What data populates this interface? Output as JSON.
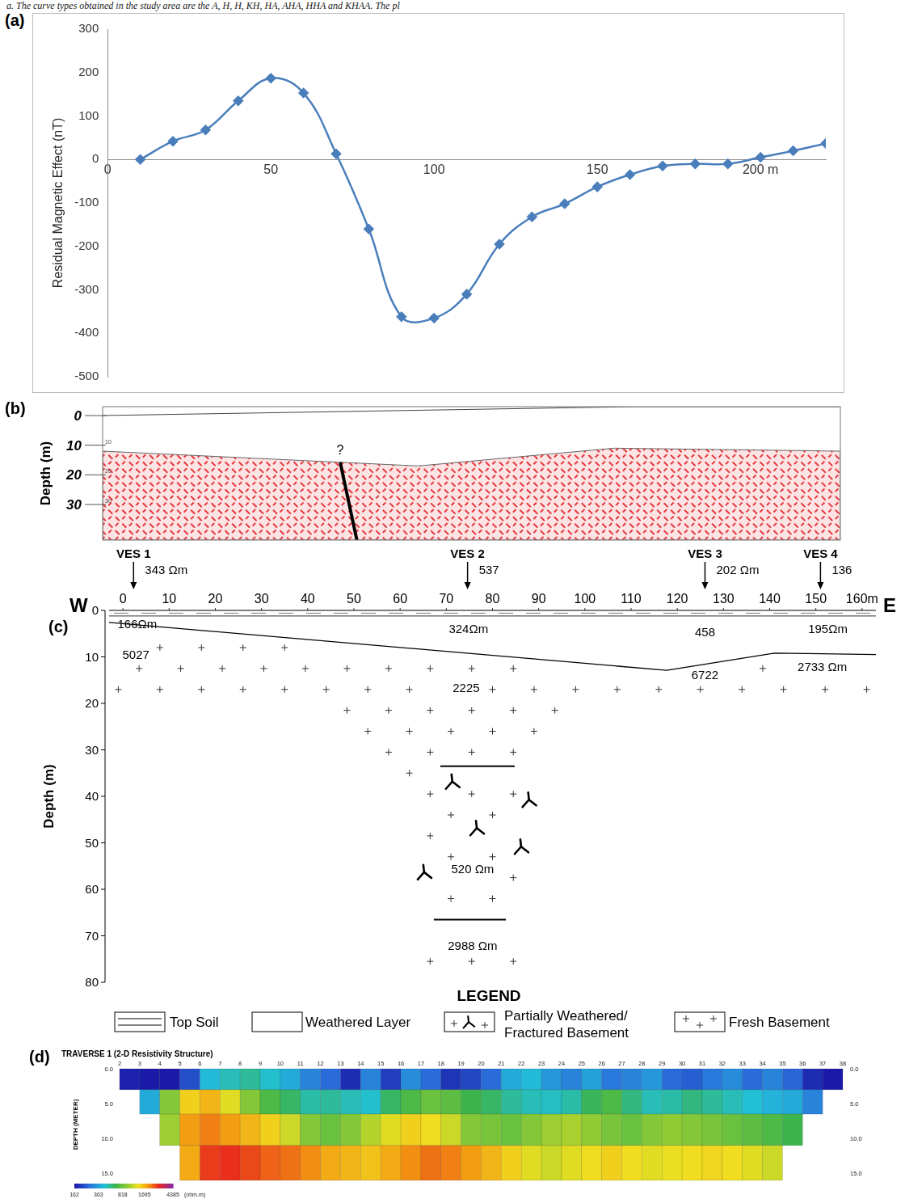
{
  "caption": "a. The curve types obtained in the study area are the A, H, H, KH, HA, AHA, HHA and KHAA. The pl",
  "chart_data": {
    "panel": "(a)",
    "type": "line",
    "y_label": "Residual Magnetic Effect (nT)",
    "x": [
      10,
      20,
      30,
      40,
      50,
      60,
      70,
      80,
      90,
      100,
      110,
      120,
      130,
      140,
      150,
      160,
      170,
      180,
      190,
      200,
      210,
      220
    ],
    "values": [
      0,
      42,
      68,
      135,
      187,
      153,
      13,
      -160,
      -362,
      -365,
      -310,
      -195,
      -132,
      -102,
      -63,
      -35,
      -15,
      -10,
      -10,
      5,
      20,
      37
    ],
    "color": "#4a7ebb",
    "marker": "diamond",
    "line_style": "solid",
    "xlim": [
      0,
      220
    ],
    "xticks": [
      0,
      50,
      100,
      150,
      {
        "value": 200,
        "label": "200 m"
      }
    ],
    "ylim": [
      -500,
      300
    ],
    "yticks": [
      -500,
      -400,
      -300,
      -200,
      -100,
      0,
      100,
      200,
      300
    ],
    "grid": false
  },
  "section_b": {
    "panel": "(b)",
    "y_label": "Depth (m)",
    "depth_ticks": [
      0,
      10,
      20,
      30
    ],
    "distance_range": [
      0,
      222
    ],
    "depth_range": [
      -3,
      42
    ],
    "surface": [
      {
        "x": 0,
        "depth": 0
      },
      {
        "x": 160,
        "depth": -3
      },
      {
        "x": 222,
        "depth": -3
      }
    ],
    "basement_top": [
      {
        "x": 0,
        "depth": 12
      },
      {
        "x": 95,
        "depth": 17
      },
      {
        "x": 154,
        "depth": 11
      },
      {
        "x": 222,
        "depth": 12
      }
    ],
    "fault": {
      "label": "?",
      "top": {
        "x": 71.5,
        "depth": 15.8
      },
      "bottom": {
        "x": 76.5,
        "depth": 42
      }
    }
  },
  "section_c": {
    "panel": "(c)",
    "west": "W",
    "east": "E",
    "y_label": "Depth (m)",
    "distance_range": [
      -3,
      163
    ],
    "distance_ticks": [
      0,
      10,
      20,
      30,
      40,
      50,
      60,
      70,
      80,
      90,
      100,
      110,
      120,
      130,
      140,
      150,
      {
        "value": 160,
        "label": "160m"
      }
    ],
    "depth_range": [
      0,
      80
    ],
    "depth_ticks": [
      0,
      10,
      20,
      30,
      40,
      50,
      60,
      70,
      80
    ],
    "ves": [
      {
        "name": "VES 1",
        "x": 2.3,
        "label": "343 Ωm"
      },
      {
        "name": "VES 2",
        "x": 74.6,
        "label": "537"
      },
      {
        "name": "VES 3",
        "x": 126,
        "label": "202 Ωm"
      },
      {
        "name": "VES 4",
        "x": 151,
        "label": "136"
      }
    ],
    "topsoil_base": [
      {
        "x": -3,
        "depth": 1.2
      },
      {
        "x": 163,
        "depth": 1.2
      }
    ],
    "weathered_base": [
      {
        "x": -3,
        "depth": 2.6
      },
      {
        "x": 117.7,
        "depth": 12.9
      },
      {
        "x": 141,
        "depth": 9.2
      },
      {
        "x": 163,
        "depth": 9.5
      }
    ],
    "fractured_zone": {
      "top": 33.5,
      "bottom": 66.5,
      "top_x": [
        68.7,
        84.8
      ],
      "bottom_x": [
        67.3,
        82.9
      ]
    },
    "layers": [
      {
        "label": "166Ωm",
        "x": 3.1,
        "depth": 3.0
      },
      {
        "label": "5027",
        "x": 2.8,
        "depth": 9.6
      },
      {
        "label": "324Ωm",
        "x": 74.8,
        "depth": 4.0
      },
      {
        "label": "2225",
        "x": 74.3,
        "depth": 16.7
      },
      {
        "label": "520 Ωm",
        "x": 75.7,
        "depth": 55.7
      },
      {
        "label": "2988 Ωm",
        "x": 75.7,
        "depth": 72.2
      },
      {
        "label": "458",
        "x": 126,
        "depth": 4.7
      },
      {
        "label": "6722",
        "x": 126,
        "depth": 13.9
      },
      {
        "label": "195Ωm",
        "x": 152.6,
        "depth": 4.0
      },
      {
        "label": "2733 Ωm",
        "x": 151.4,
        "depth": 12.2
      }
    ]
  },
  "legend": {
    "title": "LEGEND",
    "items": [
      "Top Soil",
      "Weathered Layer",
      "Partially Weathered/ Fractured Basement",
      "Fresh Basement"
    ]
  },
  "section_d": {
    "panel": "(d)",
    "title": "TRAVERSE 1 (2-D Resistivity Structure)",
    "y_label": "DEPTH (METER)",
    "electrodes": [
      2,
      3,
      4,
      5,
      6,
      7,
      8,
      9,
      10,
      11,
      12,
      13,
      14,
      15,
      16,
      17,
      18,
      19,
      20,
      21,
      22,
      23,
      24,
      25,
      26,
      27,
      28,
      29,
      30,
      31,
      32,
      33,
      34,
      35,
      36,
      37,
      38
    ],
    "depth_range": [
      0,
      16
    ],
    "depth_ticks": [
      {
        "value": 0,
        "label": "0.0"
      },
      {
        "value": 5,
        "label": "5.0"
      },
      {
        "value": 10,
        "label": "10.0"
      },
      {
        "value": 15,
        "label": "15.0"
      }
    ],
    "rows": [
      {
        "top": 0,
        "bottom": 3,
        "first_electrode": 2,
        "values": [
          170,
          150,
          160,
          220,
          420,
          480,
          520,
          450,
          380,
          300,
          260,
          180,
          300,
          200,
          320,
          260,
          190,
          210,
          260,
          380,
          420,
          340,
          300,
          360,
          280,
          300,
          340,
          260,
          240,
          280,
          320,
          260,
          300,
          250,
          180,
          150
        ]
      },
      {
        "top": 3,
        "bottom": 6.5,
        "first_electrode": 3,
        "values": [
          380,
          900,
          1500,
          1700,
          1300,
          900,
          700,
          600,
          500,
          520,
          480,
          450,
          600,
          700,
          800,
          750,
          650,
          600,
          520,
          480,
          460,
          500,
          620,
          700,
          560,
          480,
          500,
          560,
          520,
          480,
          440,
          400,
          380,
          300
        ]
      },
      {
        "top": 6.5,
        "bottom": 11,
        "first_electrode": 4,
        "values": [
          1000,
          1900,
          2100,
          1900,
          1700,
          1500,
          1200,
          900,
          800,
          900,
          1100,
          1300,
          1500,
          1400,
          1200,
          900,
          850,
          800,
          900,
          1000,
          1050,
          950,
          850,
          800,
          900,
          950,
          900,
          850,
          800,
          750,
          700,
          650
        ]
      },
      {
        "top": 11,
        "bottom": 16,
        "first_electrode": 5,
        "values": [
          1800,
          2600,
          2700,
          2500,
          2300,
          2200,
          2000,
          1800,
          1700,
          1600,
          1800,
          2000,
          2200,
          2100,
          1900,
          1700,
          1500,
          1300,
          1200,
          1300,
          1400,
          1500,
          1400,
          1300,
          1350,
          1400,
          1450,
          1400,
          1300,
          1200
        ]
      }
    ],
    "colorbar": {
      "range": [
        162,
        4385
      ],
      "ticks": [
        162,
        363,
        818,
        1695,
        4385
      ],
      "unit": "(ohm.m)"
    }
  }
}
